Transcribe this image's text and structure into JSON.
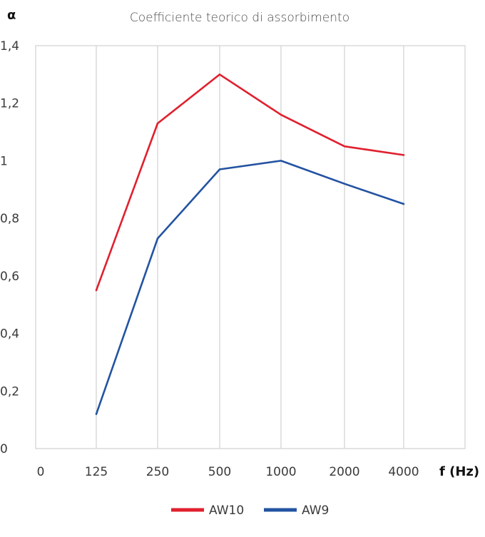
{
  "chart_data": {
    "type": "line",
    "title": "Coefficiente teorico di assorbimento",
    "ylabel": "α",
    "xlabel": "f (Hz)",
    "categories": [
      "0",
      "125",
      "250",
      "500",
      "1000",
      "2000",
      "4000"
    ],
    "ylim": [
      0,
      1.4
    ],
    "yticks": [
      "0",
      "0,2",
      "0,4",
      "0,6",
      "0,8",
      "1",
      "1,2",
      "1,4"
    ],
    "grid": "vertical",
    "legend_position": "bottom",
    "series": [
      {
        "name": "AW10",
        "color": "#e0202e",
        "x": [
          "125",
          "250",
          "500",
          "1000",
          "2000",
          "4000"
        ],
        "values": [
          0.55,
          1.13,
          1.3,
          1.16,
          1.05,
          1.02
        ]
      },
      {
        "name": "AW9",
        "color": "#2353a1",
        "x": [
          "125",
          "250",
          "500",
          "1000",
          "2000",
          "4000"
        ],
        "values": [
          0.12,
          0.73,
          0.97,
          1.0,
          0.92,
          0.85
        ]
      }
    ]
  }
}
